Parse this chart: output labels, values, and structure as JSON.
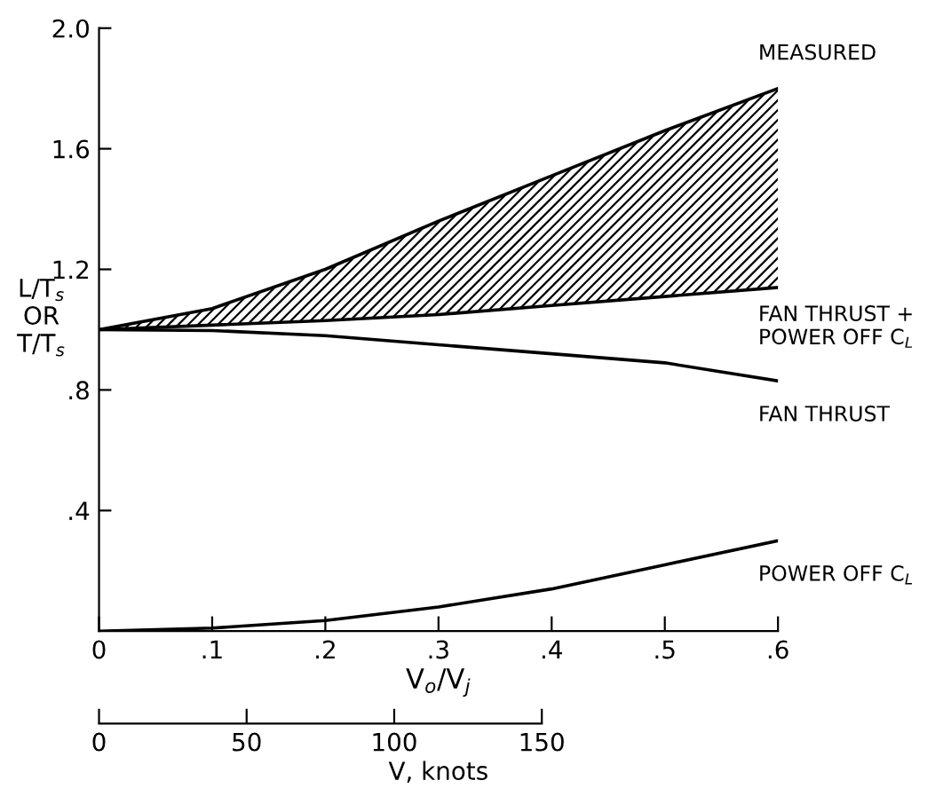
{
  "chart_data": {
    "type": "line",
    "x": [
      0,
      0.1,
      0.2,
      0.3,
      0.4,
      0.5,
      0.6
    ],
    "series": [
      {
        "name": "MEASURED",
        "color": "#000000",
        "values": [
          1.0,
          1.07,
          1.2,
          1.36,
          1.51,
          1.66,
          1.8
        ],
        "lower": [
          1.0,
          1.015,
          1.03,
          1.05,
          1.08,
          1.11,
          1.14
        ],
        "upper": [
          1.0,
          1.07,
          1.2,
          1.36,
          1.51,
          1.66,
          1.8
        ]
      },
      {
        "name": "FAN THRUST +\nPOWER OFF C$_{L}$",
        "color": "#000000",
        "values": [
          1.0,
          1.015,
          1.03,
          1.05,
          1.08,
          1.11,
          1.14
        ]
      },
      {
        "name": "FAN THRUST",
        "color": "#000000",
        "values": [
          1.0,
          0.997,
          0.98,
          0.95,
          0.92,
          0.89,
          0.83
        ]
      },
      {
        "name": "POWER OFF C$_{L}$",
        "color": "#000000",
        "values": [
          0,
          0.01,
          0.035,
          0.08,
          0.14,
          0.22,
          0.3
        ]
      }
    ],
    "xlim": [
      0,
      0.6
    ],
    "ylim": [
      0,
      2.0
    ],
    "xticks": [
      0,
      {
        "value": 0.1,
        "label": ".1"
      },
      {
        "value": 0.2,
        "label": ".2"
      },
      {
        "value": 0.3,
        "label": ".3"
      },
      {
        "value": 0.4,
        "label": ".4"
      },
      {
        "value": 0.5,
        "label": ".5"
      },
      {
        "value": 0.6,
        "label": ".6"
      }
    ],
    "yticks": [
      {
        "value": 0.4,
        "label": ".4"
      },
      {
        "value": 0.8,
        "label": ".8"
      },
      {
        "value": 1.2,
        "label": "1.2"
      },
      {
        "value": 1.6,
        "label": "1.6"
      },
      {
        "value": 2.0,
        "label": "2.0"
      }
    ],
    "xlabel": "V$_{o}$/V$_{j}$",
    "ylabel": "L/T$_{s}$\nOR\nT/T$_{s}$",
    "x2lim": [
      0,
      230
    ],
    "x2ticks": [
      0,
      50,
      100,
      150
    ],
    "x2label": "V, knots",
    "grid": false,
    "legend": false
  }
}
